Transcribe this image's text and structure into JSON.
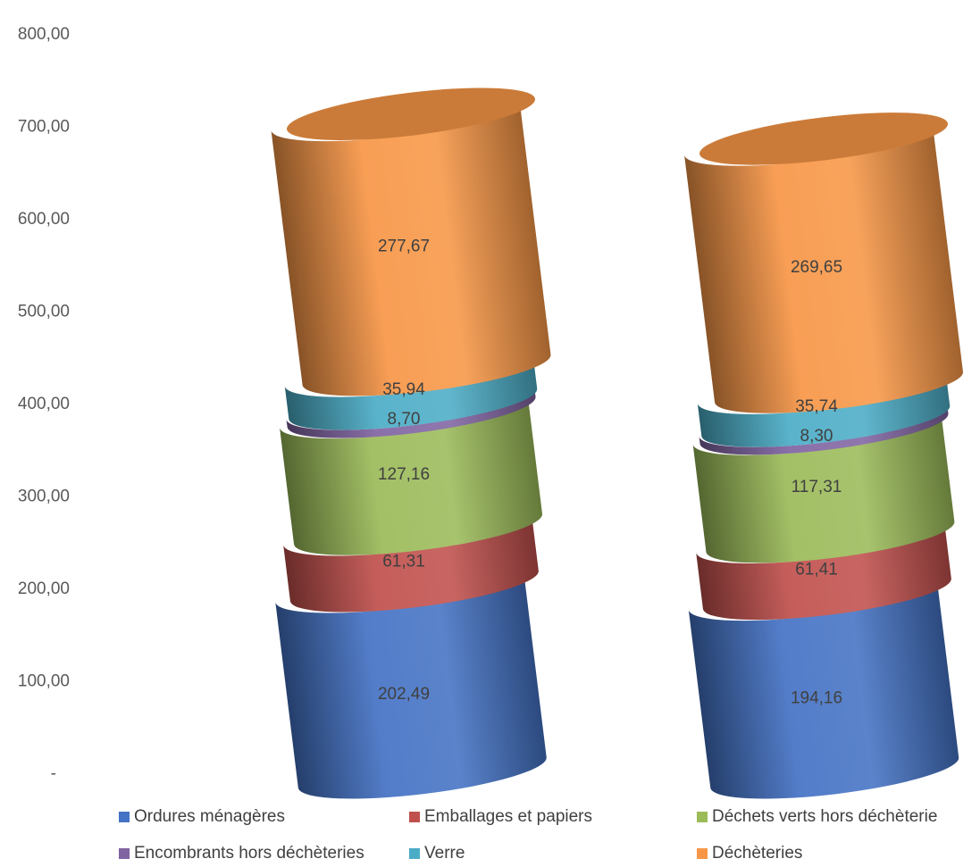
{
  "chart_data": {
    "type": "bar",
    "style": "stacked-cylinder-3d",
    "title": "",
    "xlabel": "",
    "ylabel": "",
    "ylim": [
      0,
      800
    ],
    "y_ticks": [
      {
        "value": 0,
        "label": "-"
      },
      {
        "value": 100,
        "label": "100,00"
      },
      {
        "value": 200,
        "label": "200,00"
      },
      {
        "value": 300,
        "label": "300,00"
      },
      {
        "value": 400,
        "label": "400,00"
      },
      {
        "value": 500,
        "label": "500,00"
      },
      {
        "value": 600,
        "label": "600,00"
      },
      {
        "value": 700,
        "label": "700,00"
      },
      {
        "value": 800,
        "label": "800,00"
      }
    ],
    "grid": false,
    "legend_position": "bottom",
    "categories": [
      "",
      ""
    ],
    "series": [
      {
        "name": "Ordures ménagères",
        "color": "#4472C4",
        "values": [
          202.49,
          194.16
        ],
        "labels": [
          "202,49",
          "194,16"
        ]
      },
      {
        "name": "Emballages et papiers",
        "color": "#C0504D",
        "values": [
          61.31,
          61.41
        ],
        "labels": [
          "61,31",
          "61,41"
        ]
      },
      {
        "name": "Déchets verts hors déchèterie",
        "color": "#9BBB59",
        "values": [
          127.16,
          117.31
        ],
        "labels": [
          "127,16",
          "117,31"
        ]
      },
      {
        "name": "Encombrants hors déchèteries",
        "color": "#8064A2",
        "values": [
          8.7,
          8.3
        ],
        "labels": [
          "8,70",
          "8,30"
        ]
      },
      {
        "name": "Verre",
        "color": "#4BACC6",
        "values": [
          35.94,
          35.74
        ],
        "labels": [
          "35,94",
          "35,74"
        ]
      },
      {
        "name": "Déchèteries",
        "color": "#F79646",
        "values": [
          277.67,
          269.65
        ],
        "labels": [
          "277,67",
          "269,65"
        ]
      }
    ]
  }
}
